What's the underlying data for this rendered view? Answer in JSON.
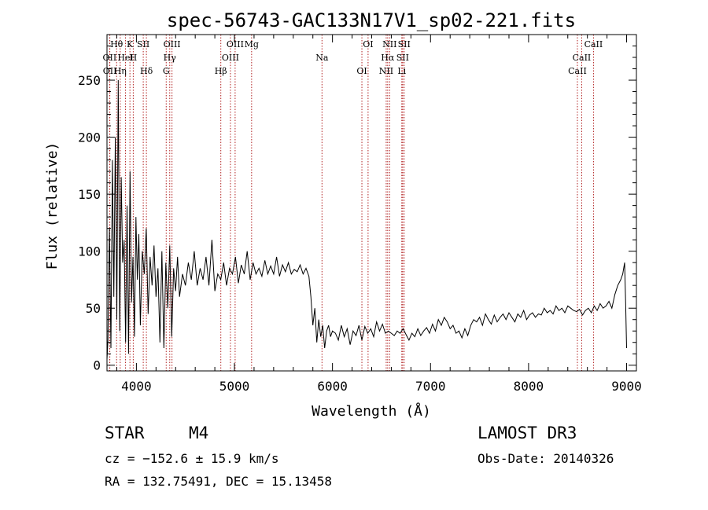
{
  "chart_data": {
    "type": "line",
    "title": "spec-56743-GAC133N17V1_sp02-221.fits",
    "xlabel": "Wavelength (Å)",
    "ylabel": "Flux (relative)",
    "xlim": [
      3700,
      9100
    ],
    "ylim": [
      -5,
      290
    ],
    "xticks": [
      4000,
      5000,
      6000,
      7000,
      8000,
      9000
    ],
    "yticks": [
      0,
      50,
      100,
      150,
      200,
      250
    ],
    "grid": false,
    "series": [
      {
        "name": "flux",
        "x": [
          3700,
          3710,
          3725,
          3740,
          3755,
          3770,
          3785,
          3800,
          3815,
          3830,
          3845,
          3860,
          3875,
          3890,
          3905,
          3920,
          3935,
          3950,
          3965,
          3980,
          3995,
          4010,
          4025,
          4040,
          4060,
          4080,
          4100,
          4120,
          4140,
          4160,
          4180,
          4200,
          4220,
          4240,
          4260,
          4280,
          4300,
          4320,
          4340,
          4360,
          4380,
          4400,
          4420,
          4440,
          4470,
          4500,
          4530,
          4560,
          4590,
          4620,
          4650,
          4680,
          4710,
          4740,
          4770,
          4800,
          4830,
          4860,
          4890,
          4920,
          4950,
          4980,
          5010,
          5040,
          5070,
          5100,
          5130,
          5160,
          5190,
          5220,
          5250,
          5280,
          5310,
          5340,
          5370,
          5400,
          5430,
          5460,
          5490,
          5520,
          5550,
          5580,
          5610,
          5640,
          5670,
          5700,
          5730,
          5760,
          5780,
          5800,
          5820,
          5840,
          5860,
          5880,
          5900,
          5920,
          5940,
          5960,
          5980,
          6000,
          6030,
          6060,
          6090,
          6120,
          6150,
          6180,
          6210,
          6240,
          6270,
          6300,
          6330,
          6360,
          6390,
          6420,
          6450,
          6480,
          6510,
          6540,
          6570,
          6600,
          6630,
          6660,
          6690,
          6720,
          6750,
          6780,
          6810,
          6840,
          6870,
          6900,
          6930,
          6960,
          6990,
          7020,
          7050,
          7080,
          7110,
          7140,
          7170,
          7200,
          7230,
          7260,
          7290,
          7320,
          7350,
          7380,
          7410,
          7440,
          7470,
          7500,
          7530,
          7560,
          7590,
          7620,
          7650,
          7680,
          7710,
          7740,
          7770,
          7800,
          7830,
          7860,
          7890,
          7920,
          7950,
          7980,
          8010,
          8040,
          8070,
          8100,
          8130,
          8160,
          8190,
          8220,
          8250,
          8280,
          8310,
          8340,
          8370,
          8400,
          8430,
          8460,
          8490,
          8520,
          8550,
          8580,
          8610,
          8640,
          8670,
          8700,
          8730,
          8760,
          8790,
          8820,
          8850,
          8880,
          8910,
          8940,
          8960,
          8980,
          8990,
          9000
        ],
        "y": [
          5,
          22,
          120,
          15,
          180,
          60,
          200,
          40,
          250,
          30,
          165,
          90,
          110,
          20,
          140,
          10,
          170,
          55,
          95,
          25,
          130,
          75,
          115,
          35,
          100,
          80,
          120,
          45,
          95,
          70,
          105,
          60,
          85,
          20,
          100,
          15,
          90,
          50,
          105,
          25,
          85,
          65,
          95,
          60,
          80,
          70,
          90,
          75,
          100,
          70,
          85,
          75,
          95,
          70,
          110,
          65,
          80,
          75,
          90,
          70,
          85,
          80,
          95,
          72,
          88,
          80,
          100,
          75,
          90,
          80,
          85,
          78,
          92,
          80,
          87,
          80,
          95,
          78,
          88,
          82,
          90,
          80,
          84,
          82,
          88,
          80,
          85,
          78,
          60,
          35,
          50,
          20,
          40,
          25,
          35,
          15,
          30,
          35,
          25,
          30,
          28,
          22,
          35,
          25,
          32,
          18,
          30,
          26,
          35,
          22,
          34,
          28,
          32,
          25,
          38,
          30,
          36,
          28,
          30,
          28,
          26,
          30,
          28,
          32,
          27,
          22,
          28,
          25,
          32,
          26,
          30,
          33,
          28,
          36,
          30,
          40,
          35,
          42,
          38,
          32,
          35,
          28,
          30,
          24,
          32,
          26,
          35,
          40,
          38,
          42,
          35,
          45,
          40,
          36,
          44,
          38,
          42,
          45,
          40,
          46,
          42,
          38,
          45,
          42,
          48,
          40,
          44,
          46,
          42,
          45,
          44,
          50,
          46,
          48,
          45,
          52,
          48,
          50,
          46,
          52,
          50,
          48,
          47,
          49,
          44,
          48,
          50,
          46,
          52,
          48,
          54,
          50,
          52,
          56,
          50,
          62,
          70,
          75,
          80,
          90,
          55,
          15
        ]
      }
    ],
    "lines": [
      {
        "label": "Hθ",
        "x": 3798
      },
      {
        "label": "OII",
        "x": 3727
      },
      {
        "label": "OII",
        "x": 3729
      },
      {
        "label": "K",
        "x": 3934
      },
      {
        "label": "HeI",
        "x": 3889
      },
      {
        "label": "Hη",
        "x": 3835
      },
      {
        "label": "SII",
        "x": 4070
      },
      {
        "label": "H",
        "x": 3968
      },
      {
        "label": "Hδ",
        "x": 4102
      },
      {
        "label": "OIII",
        "x": 4363
      },
      {
        "label": "Hγ",
        "x": 4340
      },
      {
        "label": "G",
        "x": 4304
      },
      {
        "label": "OIII",
        "x": 5007
      },
      {
        "label": "OIII",
        "x": 4959
      },
      {
        "label": "Hβ",
        "x": 4861
      },
      {
        "label": "Mg",
        "x": 5175
      },
      {
        "label": "Na",
        "x": 5893
      },
      {
        "label": "OI",
        "x": 6300
      },
      {
        "label": "OI",
        "x": 6363
      },
      {
        "label": "Hα",
        "x": 6563
      },
      {
        "label": "NII",
        "x": 6548
      },
      {
        "label": "NII",
        "x": 6583
      },
      {
        "label": "SII",
        "x": 6716
      },
      {
        "label": "Li",
        "x": 6707
      },
      {
        "label": "SII",
        "x": 6731
      },
      {
        "label": "CaII",
        "x": 8542
      },
      {
        "label": "CaII",
        "x": 8498
      },
      {
        "label": "CaII",
        "x": 8662
      }
    ]
  },
  "info": {
    "class_label": "STAR",
    "subclass_label": "M4",
    "survey_label": "LAMOST DR3",
    "cz_text": "cz = −152.6 ± 15.9 km/s",
    "obs_date_text": "Obs-Date: 20140326",
    "coords_text": "RA = 132.75491, DEC =  15.13458"
  }
}
